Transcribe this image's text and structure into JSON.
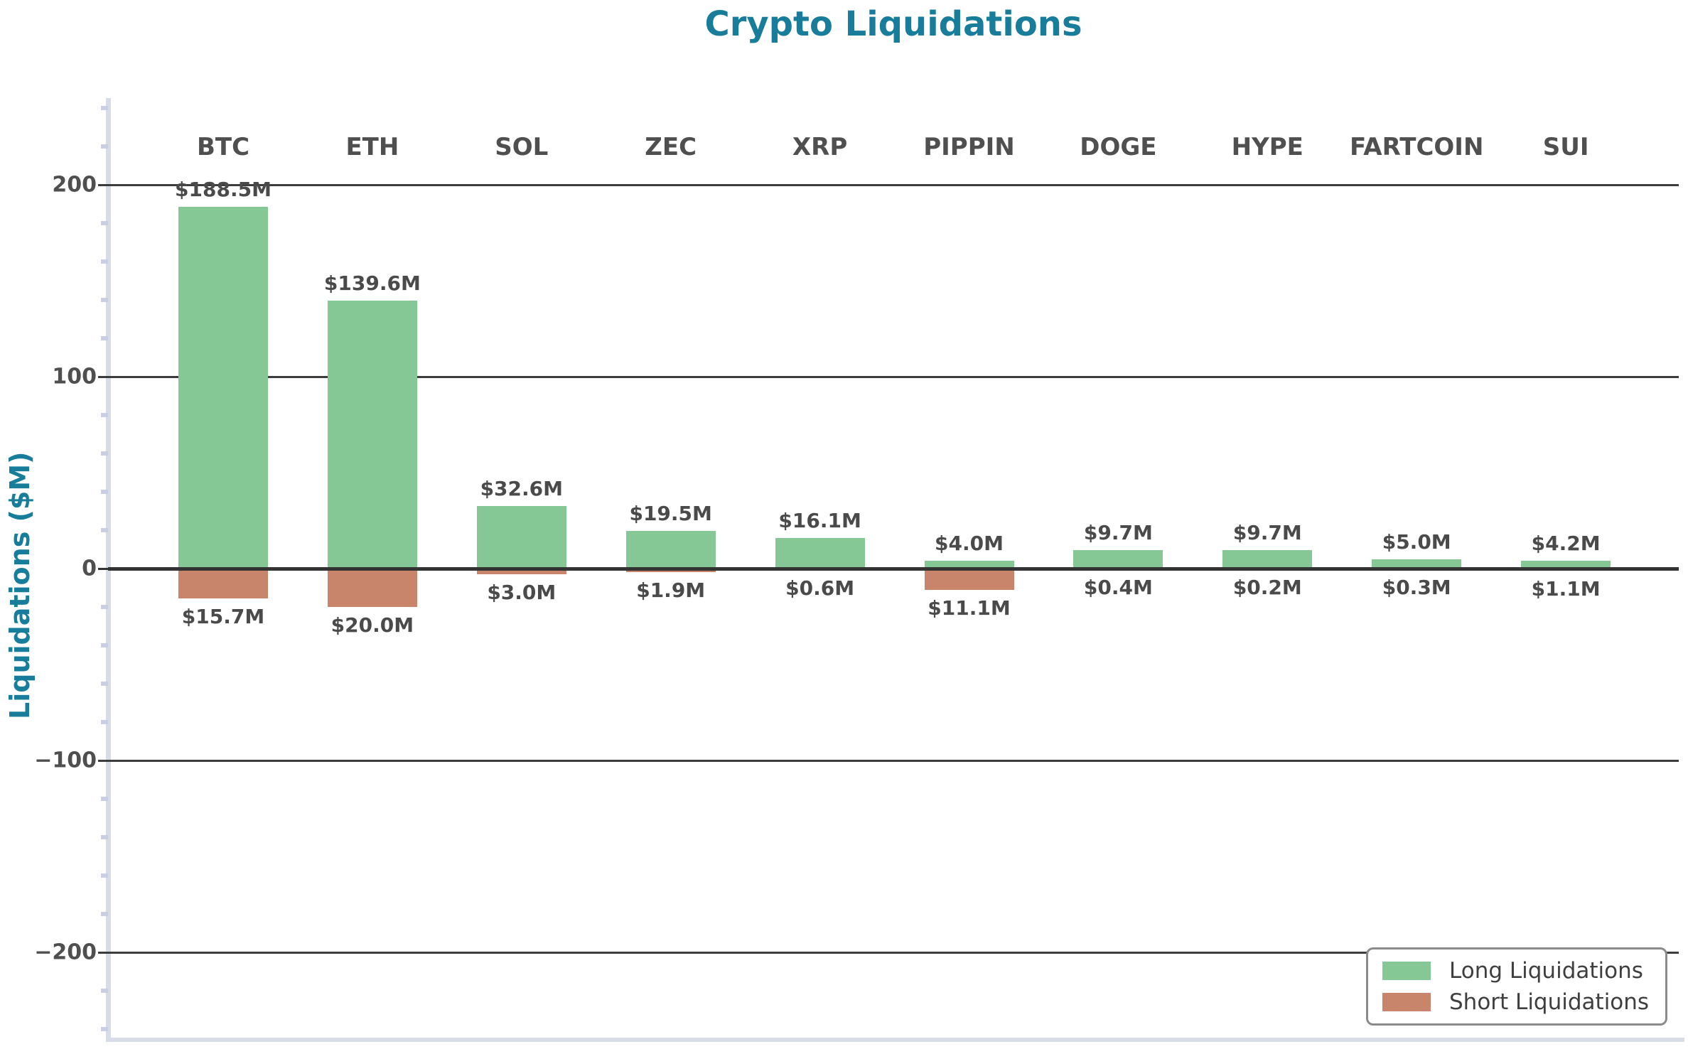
{
  "title": "Crypto Liquidations",
  "y_axis": {
    "label": "Liquidations ($M)",
    "tick_labels": [
      "200",
      "100",
      "0",
      "−100",
      "−200"
    ],
    "tick_values": [
      200,
      100,
      0,
      -100,
      -200
    ]
  },
  "legend": {
    "items": [
      {
        "label": "Long Liquidations",
        "color": "#85c896"
      },
      {
        "label": "Short Liquidations",
        "color": "#c9856b"
      }
    ]
  },
  "chart_data": {
    "type": "bar",
    "title": "Crypto Liquidations",
    "ylabel": "Liquidations ($M)",
    "categories": [
      "BTC",
      "ETH",
      "SOL",
      "ZEC",
      "XRP",
      "PIPPIN",
      "DOGE",
      "HYPE",
      "FARTCOIN",
      "SUI"
    ],
    "series": [
      {
        "name": "Long Liquidations",
        "color": "#85c896",
        "values": [
          188.5,
          139.6,
          32.6,
          19.5,
          16.1,
          4.0,
          9.7,
          9.7,
          5.0,
          4.2
        ],
        "labels": [
          "$188.5M",
          "$139.6M",
          "$32.6M",
          "$19.5M",
          "$16.1M",
          "$4.0M",
          "$9.7M",
          "$9.7M",
          "$5.0M",
          "$4.2M"
        ]
      },
      {
        "name": "Short Liquidations",
        "color": "#c9856b",
        "values": [
          -15.7,
          -20.0,
          -3.0,
          -1.9,
          -0.6,
          -11.1,
          -0.4,
          -0.2,
          -0.3,
          -1.1
        ],
        "labels": [
          "$15.7M",
          "$20.0M",
          "$3.0M",
          "$1.9M",
          "$0.6M",
          "$11.1M",
          "$0.4M",
          "$0.2M",
          "$0.3M",
          "$1.1M"
        ]
      }
    ],
    "ylim": [
      -244,
      245
    ],
    "yticks": [
      200,
      100,
      0,
      -100,
      -200
    ],
    "minor_tick_step": 20,
    "grid": "horizontal major gridlines, zero line emphasized",
    "legend_position": "lower right",
    "note": "short liquidations plotted as negative bars, labeled with absolute dollar value"
  },
  "colors": {
    "title": "#177d9a",
    "axis_label": "#177d9a",
    "tick_text": "#4f4f4f",
    "category_text": "#4f4f4f",
    "value_text": "#4a4a4a",
    "gridline": "#3c3c3c",
    "zero_line": "#333333",
    "spine": "#d8dce9",
    "minor_tick": "#c9cfe0",
    "long": "#85c896",
    "short": "#c9856b",
    "legend_border": "#8b8b8b",
    "background": "#ffffff"
  }
}
